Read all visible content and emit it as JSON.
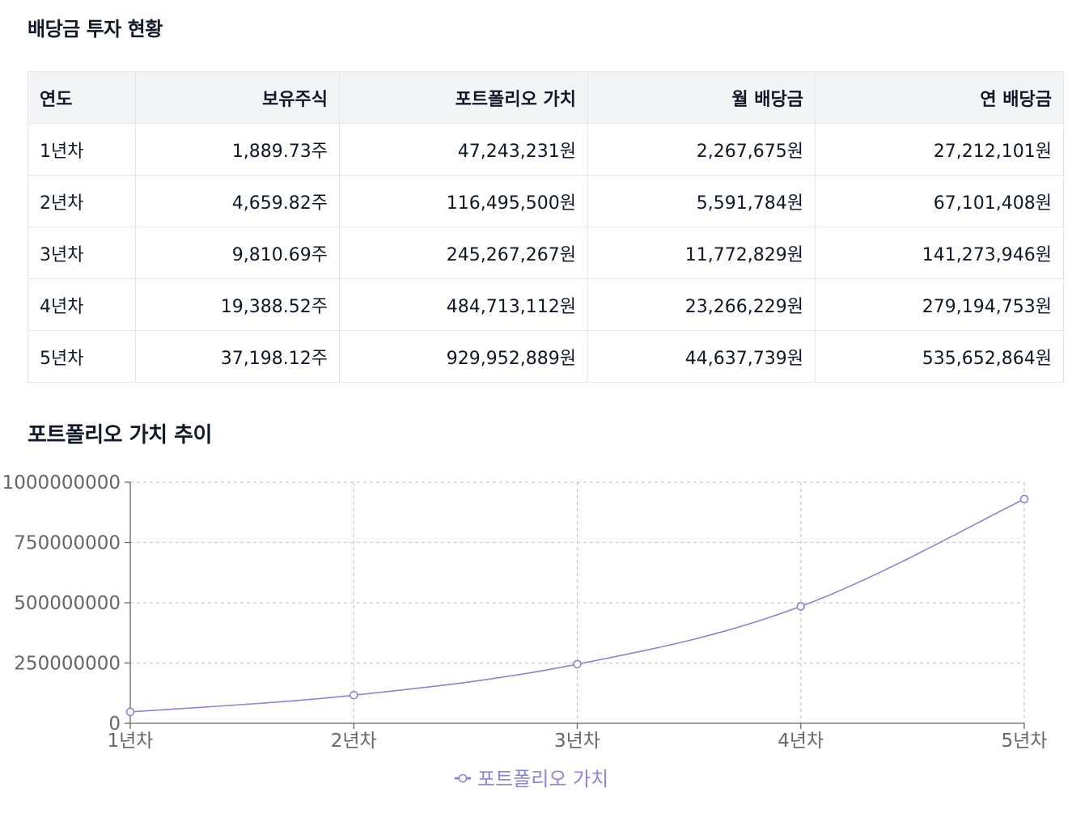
{
  "page": {
    "table_title": "배당금 투자 현황",
    "chart_title": "포트폴리오 가치 추이"
  },
  "table": {
    "headers": [
      "연도",
      "보유주식",
      "포트폴리오 가치",
      "월 배당금",
      "연 배당금"
    ],
    "rows": [
      [
        "1년차",
        "1,889.73주",
        "47,243,231원",
        "2,267,675원",
        "27,212,101원"
      ],
      [
        "2년차",
        "4,659.82주",
        "116,495,500원",
        "5,591,784원",
        "67,101,408원"
      ],
      [
        "3년차",
        "9,810.69주",
        "245,267,267원",
        "11,772,829원",
        "141,273,946원"
      ],
      [
        "4년차",
        "19,388.52주",
        "484,713,112원",
        "23,266,229원",
        "279,194,753원"
      ],
      [
        "5년차",
        "37,198.12주",
        "929,952,889원",
        "44,637,739원",
        "535,652,864원"
      ]
    ]
  },
  "chart_data": {
    "type": "line",
    "title": "포트폴리오 가치 추이",
    "categories": [
      "1년차",
      "2년차",
      "3년차",
      "4년차",
      "5년차"
    ],
    "series": [
      {
        "name": "포트폴리오 가치",
        "values": [
          47243231,
          116495500,
          245267267,
          484713112,
          929952889
        ],
        "color": "#8884d8"
      }
    ],
    "y_ticks": [
      0,
      250000000,
      500000000,
      750000000,
      1000000000
    ],
    "y_tick_labels": [
      "0",
      "250000000",
      "500000000",
      "750000000",
      "1000000000"
    ],
    "ylim": [
      0,
      1000000000
    ],
    "grid": true,
    "legend": "bottom",
    "xlabel": "",
    "ylabel": ""
  },
  "colors": {
    "accent": "#8884d8",
    "grid": "#cccccc",
    "axis": "#666666",
    "header_bg": "#f3f4f6",
    "border": "#e5e7eb"
  }
}
